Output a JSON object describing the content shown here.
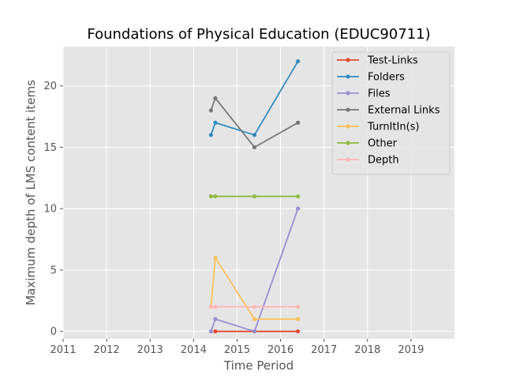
{
  "chart_data": {
    "type": "line",
    "title": "Foundations of Physical Education (EDUC90711)",
    "xlabel": "Time Period",
    "ylabel": "Maximum depth of LMS content items",
    "xlim": [
      2011,
      2020
    ],
    "ylim": [
      -0.6,
      23.2
    ],
    "xticks": [
      2011,
      2012,
      2013,
      2014,
      2015,
      2016,
      2017,
      2018,
      2019
    ],
    "yticks": [
      0,
      5,
      10,
      15,
      20
    ],
    "grid": true,
    "legend_position": "top-right",
    "series": [
      {
        "name": "Test-Links",
        "color": "#E24A33",
        "x": [
          2014.5,
          2015.4,
          2016.4
        ],
        "y": [
          0,
          0,
          0
        ]
      },
      {
        "name": "Folders",
        "color": "#348ABD",
        "x": [
          2014.4,
          2014.5,
          2015.4,
          2016.4
        ],
        "y": [
          16,
          17,
          16,
          22
        ]
      },
      {
        "name": "Files",
        "color": "#988ED5",
        "x": [
          2014.4,
          2014.5,
          2015.4,
          2016.4
        ],
        "y": [
          0,
          1,
          0,
          10
        ]
      },
      {
        "name": "External Links",
        "color": "#777777",
        "x": [
          2014.4,
          2014.5,
          2015.4,
          2016.4
        ],
        "y": [
          18,
          19,
          15,
          17
        ]
      },
      {
        "name": "TurnItIn(s)",
        "color": "#FBC15E",
        "x": [
          2014.4,
          2014.5,
          2015.4,
          2016.4
        ],
        "y": [
          2,
          6,
          1,
          1
        ]
      },
      {
        "name": "Other",
        "color": "#8EBA42",
        "x": [
          2014.4,
          2014.5,
          2015.4,
          2016.4
        ],
        "y": [
          11,
          11,
          11,
          11
        ]
      },
      {
        "name": "Depth",
        "color": "#FFB5B8",
        "x": [
          2014.4,
          2014.5,
          2015.4,
          2016.4
        ],
        "y": [
          2,
          2,
          2,
          2
        ]
      }
    ]
  }
}
